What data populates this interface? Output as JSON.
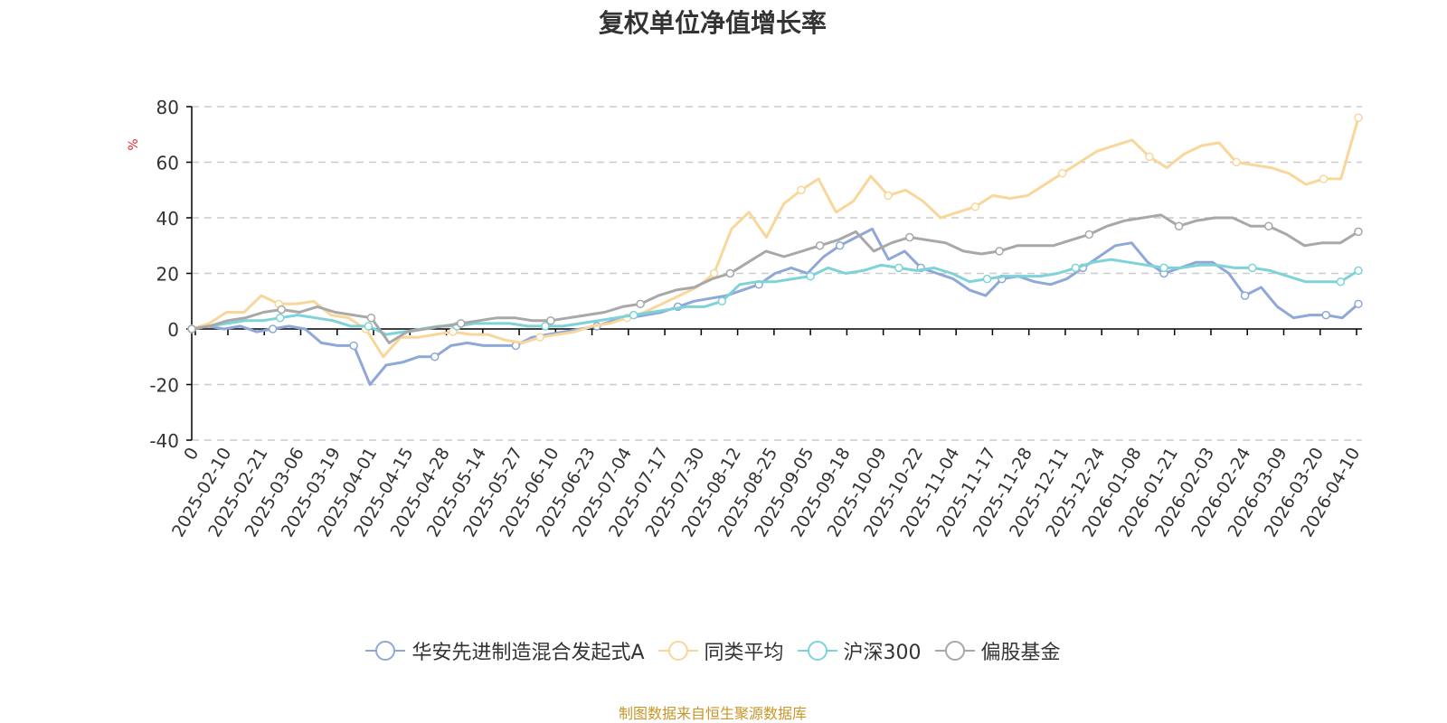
{
  "chart_data": {
    "type": "line",
    "title": "复权单位净值增长率",
    "ylabel": "%",
    "ylim": [
      -40,
      80
    ],
    "yticks": [
      "80",
      "60",
      "40",
      "20",
      "0",
      "-20",
      "-40"
    ],
    "ytick_values": [
      80,
      60,
      40,
      20,
      0,
      -20,
      -40
    ],
    "x_origin_label": "0",
    "x_tick_labels": [
      "2025-02-10",
      "2025-02-21",
      "2025-03-06",
      "2025-03-19",
      "2025-04-01",
      "2025-04-15",
      "2025-04-28",
      "2025-05-14",
      "2025-05-27",
      "2025-06-10",
      "2025-06-23",
      "2025-07-04",
      "2025-07-17",
      "2025-07-30",
      "2025-08-12",
      "2025-08-25",
      "2025-09-05",
      "2025-09-18",
      "2025-10-09",
      "2025-10-22",
      "2025-11-04",
      "2025-11-17",
      "2025-11-28",
      "2025-12-11",
      "2025-12-24",
      "2026-01-08",
      "2026-01-21",
      "2026-02-03",
      "2026-02-24",
      "2026-03-09",
      "2026-03-20",
      "2026-04-10"
    ],
    "grid": "horizontal-dashed",
    "legend_position": "bottom",
    "series": [
      {
        "name": "华安先进制造混合发起式A",
        "color": "#8fa8d8",
        "values": [
          0,
          1,
          0,
          1,
          -1,
          0,
          1,
          0,
          -5,
          -6,
          -6,
          -20,
          -13,
          -12,
          -10,
          -10,
          -6,
          -5,
          -6,
          -6,
          -6,
          -3,
          -2,
          -1,
          0,
          1,
          3,
          4,
          5,
          6,
          8,
          10,
          11,
          12,
          14,
          16,
          20,
          22,
          20,
          26,
          30,
          33,
          36,
          25,
          28,
          22,
          20,
          18,
          14,
          12,
          18,
          19,
          17,
          16,
          18,
          22,
          26,
          30,
          31,
          24,
          20,
          22,
          24,
          24,
          20,
          12,
          15,
          8,
          4,
          5,
          5,
          4,
          9
        ]
      },
      {
        "name": "同类平均",
        "color": "#f9d699",
        "values": [
          0,
          2,
          6,
          6,
          12,
          9,
          9,
          10,
          5,
          4,
          0,
          -10,
          -3,
          -3,
          -2,
          -1,
          -2,
          -2,
          -4,
          -5,
          -3,
          -2,
          -1,
          1,
          2,
          4,
          6,
          9,
          12,
          15,
          20,
          36,
          42,
          33,
          45,
          50,
          54,
          42,
          46,
          55,
          48,
          50,
          46,
          40,
          42,
          44,
          48,
          47,
          48,
          52,
          56,
          60,
          64,
          66,
          68,
          62,
          58,
          63,
          66,
          67,
          60,
          59,
          58,
          56,
          52,
          54,
          54,
          76
        ]
      },
      {
        "name": "沪深300",
        "color": "#7dd3d8",
        "values": [
          0,
          1,
          2,
          3,
          3,
          4,
          5,
          4,
          3,
          1,
          1,
          -2,
          -1,
          0,
          1,
          1,
          2,
          2,
          2,
          1,
          1,
          1,
          2,
          3,
          4,
          5,
          6,
          7,
          8,
          8,
          10,
          16,
          17,
          17,
          18,
          19,
          22,
          20,
          21,
          23,
          22,
          21,
          22,
          20,
          17,
          18,
          19,
          19,
          19,
          20,
          22,
          24,
          25,
          24,
          23,
          22,
          22,
          23,
          23,
          22,
          22,
          21,
          19,
          17,
          17,
          17,
          21
        ]
      },
      {
        "name": "偏股基金",
        "color": "#a8a8a8",
        "values": [
          0,
          1,
          3,
          4,
          6,
          7,
          6,
          8,
          6,
          5,
          4,
          -5,
          -1,
          0,
          1,
          2,
          3,
          4,
          4,
          3,
          3,
          4,
          5,
          6,
          8,
          9,
          12,
          14,
          15,
          18,
          20,
          24,
          28,
          26,
          28,
          30,
          32,
          35,
          28,
          31,
          33,
          32,
          31,
          28,
          27,
          28,
          30,
          30,
          30,
          32,
          34,
          37,
          39,
          40,
          41,
          37,
          39,
          40,
          40,
          37,
          37,
          34,
          30,
          31,
          31,
          35
        ]
      }
    ]
  },
  "legend": {
    "items": [
      "华安先进制造混合发起式A",
      "同类平均",
      "沪深300",
      "偏股基金"
    ]
  },
  "source_note": "制图数据来自恒生聚源数据库",
  "colors": {
    "axis": "#000000",
    "grid": "#cccccc",
    "ylabel": "#e8262a",
    "text": "#333333",
    "source": "#c8962a"
  }
}
